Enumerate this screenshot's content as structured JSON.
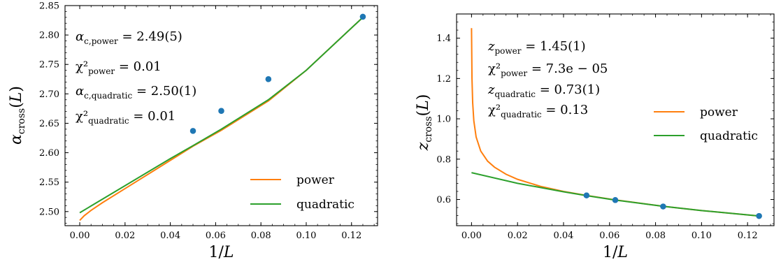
{
  "chart_data": [
    {
      "type": "line",
      "xlabel": "1/L",
      "ylabel": "α_cross(L)",
      "xlim": [
        -0.0065,
        0.1315
      ],
      "ylim": [
        2.476,
        2.85
      ],
      "xticks": [
        "0.00",
        "0.02",
        "0.04",
        "0.06",
        "0.08",
        "0.10",
        "0.12"
      ],
      "xtick_values": [
        0.0,
        0.02,
        0.04,
        0.06,
        0.08,
        0.1,
        0.12
      ],
      "yticks": [
        "2.50",
        "2.55",
        "2.60",
        "2.65",
        "2.70",
        "2.75",
        "2.80",
        "2.85"
      ],
      "ytick_values": [
        2.5,
        2.55,
        2.6,
        2.65,
        2.7,
        2.75,
        2.8,
        2.85
      ],
      "annotations": [
        {
          "main": "α",
          "sub": "c,power",
          "rest": " = 2.49(5)"
        },
        {
          "main": "χ²",
          "sub": "power",
          "rest": " = 0.01"
        },
        {
          "main": "α",
          "sub": "c,quadratic",
          "rest": " = 2.50(1)"
        },
        {
          "main": "χ²",
          "sub": "quadratic",
          "rest": " = 0.01"
        }
      ],
      "legend": {
        "position": "lower-right",
        "entries": [
          "power",
          "quadratic"
        ]
      },
      "series": [
        {
          "name": "power",
          "color": "#ff7f0e",
          "x": [
            0.0,
            0.002,
            0.005,
            0.01,
            0.02,
            0.03,
            0.04,
            0.05,
            0.0625,
            0.0833,
            0.1,
            0.125
          ],
          "y": [
            2.485,
            2.493,
            2.502,
            2.515,
            2.539,
            2.563,
            2.587,
            2.611,
            2.638,
            2.688,
            2.74,
            2.83
          ]
        },
        {
          "name": "quadratic",
          "color": "#2ca02c",
          "x": [
            0.0,
            0.02,
            0.04,
            0.05,
            0.0625,
            0.0833,
            0.1,
            0.125
          ],
          "y": [
            2.498,
            2.544,
            2.59,
            2.612,
            2.64,
            2.69,
            2.74,
            2.83
          ]
        },
        {
          "name": "data",
          "color": "#1f77b4",
          "markers": true,
          "x": [
            0.05,
            0.0625,
            0.0833,
            0.125
          ],
          "y": [
            2.637,
            2.671,
            2.725,
            2.831
          ]
        }
      ]
    },
    {
      "type": "line",
      "xlabel": "1/L",
      "ylabel": "z_cross(L)",
      "xlim": [
        -0.0065,
        0.1315
      ],
      "ylim": [
        0.47,
        1.52
      ],
      "xticks": [
        "0.00",
        "0.02",
        "0.04",
        "0.06",
        "0.08",
        "0.10",
        "0.12"
      ],
      "xtick_values": [
        0.0,
        0.02,
        0.04,
        0.06,
        0.08,
        0.1,
        0.12
      ],
      "yticks": [
        "0.6",
        "0.8",
        "1.0",
        "1.2",
        "1.4"
      ],
      "ytick_values": [
        0.6,
        0.8,
        1.0,
        1.2,
        1.4
      ],
      "annotations": [
        {
          "main": "z",
          "sub": "power",
          "rest": " = 1.45(1)"
        },
        {
          "main": "χ²",
          "sub": "power",
          "rest": " = 7.3e − 05"
        },
        {
          "main": "z",
          "sub": "quadratic",
          "rest": " = 0.73(1)"
        },
        {
          "main": "χ²",
          "sub": "quadratic",
          "rest": " = 0.13"
        }
      ],
      "legend": {
        "position": "center-right",
        "entries": [
          "power",
          "quadratic"
        ]
      },
      "series": [
        {
          "name": "power",
          "color": "#ff7f0e",
          "x": [
            0.0,
            0.0002,
            0.0005,
            0.001,
            0.002,
            0.004,
            0.007,
            0.01,
            0.015,
            0.02,
            0.03,
            0.04,
            0.05,
            0.0625,
            0.0833,
            0.1,
            0.125
          ],
          "y": [
            1.45,
            1.2,
            1.08,
            0.99,
            0.91,
            0.84,
            0.79,
            0.76,
            0.725,
            0.7,
            0.665,
            0.64,
            0.62,
            0.598,
            0.566,
            0.545,
            0.518
          ]
        },
        {
          "name": "quadratic",
          "color": "#2ca02c",
          "x": [
            0.0,
            0.02,
            0.04,
            0.05,
            0.0625,
            0.0833,
            0.1,
            0.125
          ],
          "y": [
            0.733,
            0.68,
            0.638,
            0.619,
            0.597,
            0.566,
            0.545,
            0.518
          ]
        },
        {
          "name": "data",
          "color": "#1f77b4",
          "markers": true,
          "x": [
            0.05,
            0.0625,
            0.0833,
            0.125
          ],
          "y": [
            0.62,
            0.597,
            0.565,
            0.518
          ]
        }
      ]
    }
  ]
}
